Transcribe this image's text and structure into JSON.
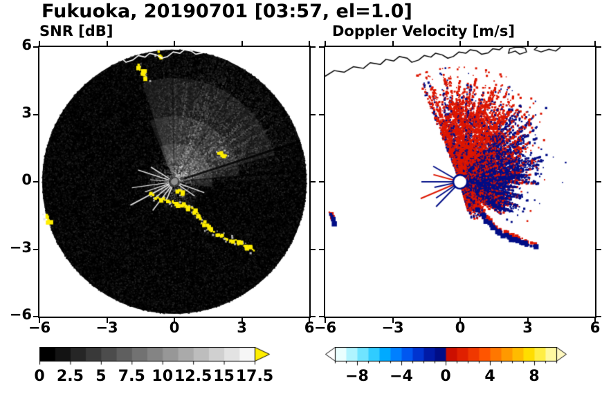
{
  "title": "Fukuoka, 20190701 [03:57, el=1.0]",
  "panels": [
    {
      "title": "SNR [dB]"
    },
    {
      "title": "Doppler Velocity [m/s]"
    }
  ],
  "axes": {
    "xlim": [
      -6,
      6
    ],
    "ylim": [
      -6,
      6
    ],
    "x_tick_values": [
      -6,
      -3,
      0,
      3,
      6
    ],
    "x_tick_labels": [
      "−6",
      "−3",
      "0",
      "3",
      "6"
    ],
    "y_tick_values": [
      6,
      3,
      0,
      -3,
      -6
    ],
    "y_tick_labels": [
      "6",
      "3",
      "0",
      "−3",
      "−6"
    ]
  },
  "map_overlay": {
    "coastline_segments": [
      {
        "closed": false,
        "points": [
          [
            -6.0,
            4.7
          ],
          [
            -5.6,
            4.95
          ],
          [
            -5.15,
            4.88
          ],
          [
            -4.75,
            5.12
          ],
          [
            -4.3,
            5.05
          ],
          [
            -4.0,
            5.3
          ],
          [
            -3.55,
            5.22
          ],
          [
            -3.3,
            5.45
          ],
          [
            -2.95,
            5.38
          ],
          [
            -2.7,
            5.58
          ],
          [
            -2.35,
            5.5
          ],
          [
            -2.15,
            5.32
          ],
          [
            -1.85,
            5.42
          ],
          [
            -1.6,
            5.62
          ],
          [
            -1.3,
            5.55
          ],
          [
            -1.1,
            5.72
          ],
          [
            -0.8,
            5.65
          ],
          [
            -0.55,
            5.5
          ],
          [
            -0.3,
            5.58
          ],
          [
            -0.05,
            5.78
          ],
          [
            0.25,
            5.72
          ],
          [
            0.45,
            5.88
          ],
          [
            0.75,
            5.82
          ],
          [
            0.95,
            5.68
          ],
          [
            1.25,
            5.74
          ],
          [
            1.45,
            5.92
          ],
          [
            1.75,
            5.88
          ],
          [
            1.95,
            6.05
          ]
        ]
      },
      {
        "closed": true,
        "points": [
          [
            2.15,
            5.72
          ],
          [
            2.45,
            5.82
          ],
          [
            2.65,
            5.68
          ],
          [
            2.95,
            5.78
          ],
          [
            2.9,
            5.95
          ],
          [
            2.55,
            6.02
          ],
          [
            2.2,
            5.92
          ]
        ]
      },
      {
        "closed": true,
        "points": [
          [
            3.3,
            5.88
          ],
          [
            3.6,
            5.78
          ],
          [
            3.95,
            5.9
          ],
          [
            4.25,
            5.82
          ],
          [
            4.45,
            5.98
          ],
          [
            4.4,
            6.12
          ],
          [
            3.9,
            6.18
          ],
          [
            3.45,
            6.02
          ]
        ]
      }
    ]
  },
  "chart_data": [
    {
      "type": "heatmap",
      "title": "SNR [dB]",
      "xlim": [
        -6,
        6
      ],
      "ylim": [
        -6,
        6
      ],
      "colorbar": {
        "min": 0,
        "max": 17.5,
        "ticks": [
          0,
          2.5,
          5,
          7.5,
          10,
          12.5,
          15,
          17.5
        ],
        "tick_labels": [
          "0",
          "2.5",
          "5",
          "7.5",
          "10",
          "12.5",
          "15",
          "17.5"
        ],
        "colormap": "black-to-white grayscale",
        "overflow_color": "#ffee00"
      },
      "scan_disk": {
        "center": [
          0,
          0
        ],
        "radius": 6,
        "background_color": "#000000"
      },
      "echo_fan": {
        "azimuth_deg": [
          -8,
          112
        ],
        "appearance": "gray speckle, radial streaks, brightest near radar"
      },
      "clutter_color": "#ffee00",
      "clutter_chains": [
        {
          "name": "south-arc",
          "points": [
            [
              -1.1,
              -0.58
            ],
            [
              -0.6,
              -0.78
            ],
            [
              -0.15,
              -0.92
            ],
            [
              0.3,
              -1.02
            ],
            [
              0.7,
              -1.18
            ],
            [
              1.05,
              -1.48
            ],
            [
              1.3,
              -1.85
            ],
            [
              1.65,
              -2.18
            ],
            [
              2.1,
              -2.45
            ],
            [
              2.55,
              -2.6
            ],
            [
              3.0,
              -2.75
            ],
            [
              3.35,
              -2.95
            ],
            [
              3.5,
              -3.1
            ]
          ]
        },
        {
          "name": "west-edge",
          "points": [
            [
              -5.75,
              -1.5
            ],
            [
              -5.55,
              -1.85
            ]
          ]
        },
        {
          "name": "north-streak",
          "points": [
            [
              -1.62,
              5.15
            ],
            [
              -1.38,
              4.85
            ],
            [
              -1.22,
              4.6
            ]
          ]
        },
        {
          "name": "north-small",
          "points": [
            [
              -0.72,
              5.75
            ],
            [
              -0.6,
              5.5
            ]
          ]
        },
        {
          "name": "east-dash",
          "points": [
            [
              2.0,
              1.3
            ],
            [
              2.35,
              1.18
            ]
          ]
        },
        {
          "name": "near-center",
          "points": [
            [
              0.12,
              -0.38
            ],
            [
              0.4,
              -0.52
            ]
          ]
        }
      ]
    },
    {
      "type": "heatmap",
      "title": "Doppler Velocity [m/s]",
      "xlim": [
        -6,
        6
      ],
      "ylim": [
        -6,
        6
      ],
      "colorbar": {
        "min": -10,
        "max": 10,
        "ticks": [
          -8,
          -4,
          0,
          4,
          8
        ],
        "tick_labels": [
          "−8",
          "−4",
          "0",
          "4",
          "8"
        ],
        "segment_colors": [
          "#eaffff",
          "#b0f4ff",
          "#70e4ff",
          "#30ccff",
          "#00aaff",
          "#0080ff",
          "#0057f0",
          "#0034d0",
          "#001aa6",
          "#000d86",
          "#cc0f00",
          "#e02000",
          "#f03800",
          "#ff5500",
          "#ff7700",
          "#ff9900",
          "#ffbb00",
          "#ffdd00",
          "#ffee44",
          "#fff9a0"
        ],
        "underflow_color": "#ffffff",
        "overflow_color": "#fff9c0"
      },
      "colors": {
        "negative": "#000d86",
        "positive": "#dd1600"
      },
      "velocity_sectors": [
        {
          "azimuth_deg": [
            -75,
            -40
          ],
          "max_radius": 1.5,
          "red_fraction": 0.7
        },
        {
          "azimuth_deg": [
            -40,
            -4
          ],
          "max_radius": 2.7,
          "red_fraction": 0.22
        },
        {
          "azimuth_deg": [
            -4,
            22
          ],
          "max_radius": 3.6,
          "red_fraction": 0.2
        },
        {
          "azimuth_deg": [
            22,
            55
          ],
          "max_radius": 4.3,
          "red_fraction": 0.5
        },
        {
          "azimuth_deg": [
            55,
            112
          ],
          "max_radius": 4.7,
          "red_fraction": 0.85
        }
      ],
      "clutter_chains": [
        {
          "name": "south-arc",
          "points": [
            [
              0.7,
              -1.2
            ],
            [
              1.05,
              -1.5
            ],
            [
              1.3,
              -1.85
            ],
            [
              1.65,
              -2.18
            ],
            [
              2.1,
              -2.45
            ],
            [
              2.55,
              -2.62
            ],
            [
              3.0,
              -2.78
            ],
            [
              3.35,
              -2.95
            ]
          ]
        },
        {
          "name": "west-edge",
          "points": [
            [
              -5.75,
              -1.5
            ],
            [
              -5.55,
              -1.85
            ]
          ]
        }
      ]
    }
  ]
}
